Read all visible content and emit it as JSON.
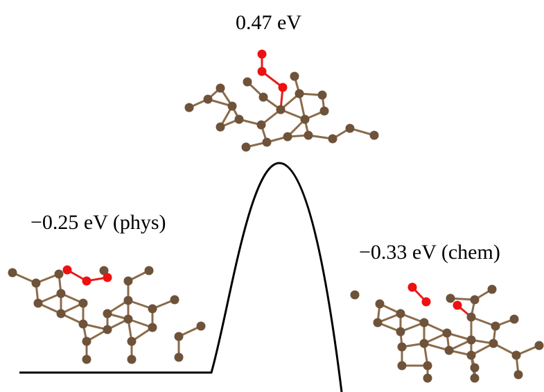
{
  "states": [
    {
      "label": "−0.25 eV (phys)"
    },
    {
      "label": "0.47 eV"
    },
    {
      "label": "−0.33 eV (chem)"
    }
  ]
}
